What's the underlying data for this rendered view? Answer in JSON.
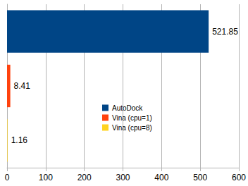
{
  "chart_data": {
    "type": "bar",
    "orientation": "horizontal",
    "series": [
      {
        "name": "AutoDock",
        "color": "#004586",
        "values": [
          521.85
        ]
      },
      {
        "name": "Vina (cpu=1)",
        "color": "#ff420e",
        "values": [
          8.41
        ]
      },
      {
        "name": "Vina (cpu=8)",
        "color": "#ffd320",
        "values": [
          1.16
        ]
      }
    ],
    "xlim": [
      0,
      600
    ],
    "xticks": [
      0,
      100,
      200,
      300,
      400,
      500,
      600
    ],
    "grid": true,
    "legend": "center",
    "data_labels": true,
    "tick_labels": "x"
  }
}
